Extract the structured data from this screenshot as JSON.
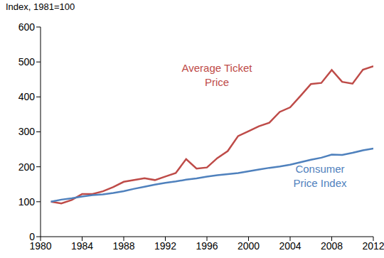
{
  "chart_data": {
    "type": "line",
    "y_label": "Index, 1981=100",
    "x": [
      1981,
      1982,
      1983,
      1984,
      1985,
      1986,
      1987,
      1988,
      1989,
      1990,
      1991,
      1992,
      1993,
      1994,
      1995,
      1996,
      1997,
      1998,
      1999,
      2000,
      2001,
      2002,
      2003,
      2004,
      2005,
      2006,
      2007,
      2008,
      2009,
      2010,
      2011,
      2012
    ],
    "series": [
      {
        "name": "Average Ticket Price",
        "color": "#be4b48",
        "values": [
          100,
          95,
          105,
          122,
          122,
          130,
          142,
          157,
          162,
          167,
          162,
          172,
          182,
          222,
          195,
          198,
          225,
          245,
          288,
          302,
          316,
          326,
          357,
          370,
          403,
          437,
          440,
          477,
          443,
          438,
          478,
          488
        ]
      },
      {
        "name": "Consumer Price Index",
        "color": "#4f81bd",
        "values": [
          100,
          106,
          110,
          115,
          119,
          121,
          125,
          130,
          137,
          143,
          149,
          154,
          158,
          163,
          167,
          172,
          176,
          179,
          182,
          187,
          192,
          197,
          201,
          206,
          213,
          220,
          226,
          235,
          234,
          240,
          247,
          252
        ]
      }
    ],
    "xlim": [
      1980,
      2012
    ],
    "xticks": [
      1980,
      1984,
      1988,
      1992,
      1996,
      2000,
      2004,
      2008,
      2012
    ],
    "ylim": [
      0,
      600
    ],
    "yticks": [
      0,
      100,
      200,
      300,
      400,
      500,
      600
    ],
    "grid": false
  }
}
